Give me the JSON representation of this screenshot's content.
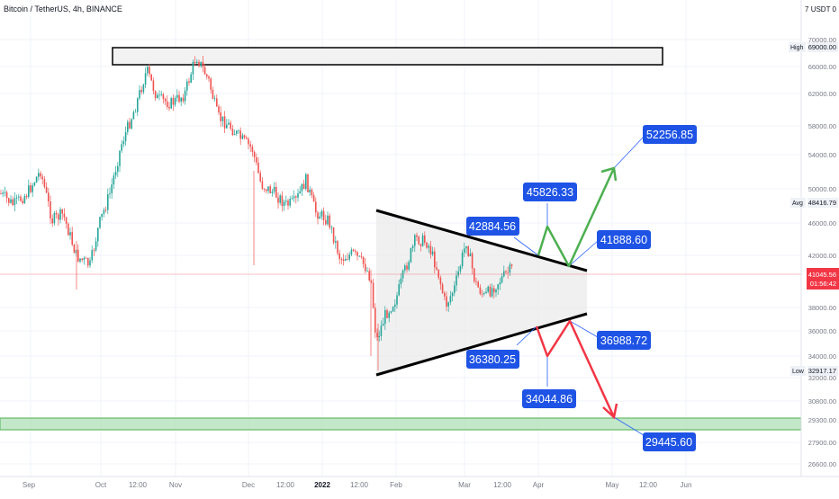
{
  "header": {
    "title": "Bitcoin / TetherUS, 4h, BINANCE",
    "top_right": "7 USDT 0"
  },
  "price_scale": {
    "ticks": [
      "70000.00",
      "66000.00",
      "62000.00",
      "58000.00",
      "54000.00",
      "50000.00",
      "46000.00",
      "42000.00",
      "38000.00",
      "36000.00",
      "34000.00",
      "32000.00",
      "30800.00",
      "29300.00",
      "27900.00",
      "26600.00"
    ],
    "high_label": "High",
    "high_value": "69000.00",
    "avg_label": "Avg",
    "avg_value": "48416.79",
    "low_label": "Low",
    "low_value": "32917.17",
    "current_price": "41045.56",
    "countdown": "01:56:42"
  },
  "time_axis": [
    "Sep",
    "Oct",
    "12:00",
    "Nov",
    "Dec",
    "12:00",
    "2022",
    "12:00",
    "Feb",
    "Mar",
    "12:00",
    "Apr",
    "May",
    "12:00",
    "Jun"
  ],
  "annotations": {
    "p1": "52256.85",
    "p2": "45826.33",
    "p3": "42884.56",
    "p4": "41888.60",
    "p5": "36988.72",
    "p6": "36380.25",
    "p7": "34044.86",
    "p8": "29445.60"
  },
  "colors": {
    "up_candle": "#26a69a",
    "down_candle": "#ef5350",
    "label_bg": "#1e53e5",
    "bull_arrow": "#4caf50",
    "bear_arrow": "#f23645",
    "support_zone": "#a5d6a7",
    "current_price_tag": "#f23645"
  },
  "chart_data": {
    "type": "candlestick",
    "title": "Bitcoin / TetherUS, 4h, BINANCE",
    "y_range": [
      26000,
      71000
    ],
    "series": [
      {
        "x": [
          "Sep",
          "Oct",
          "Nov",
          "Dec",
          "2022",
          "Feb",
          "Mar",
          "Apr",
          "May",
          "Jun"
        ],
        "values": [
          47500,
          43500,
          61000,
          57000,
          47000,
          38500,
          41000,
          41000,
          null,
          null
        ]
      }
    ],
    "annotations": [
      {
        "label": "42884.56",
        "value": 42884.56
      },
      {
        "label": "45826.33",
        "value": 45826.33
      },
      {
        "label": "41888.60",
        "value": 41888.6
      },
      {
        "label": "52256.85",
        "value": 52256.85
      },
      {
        "label": "36380.25",
        "value": 36380.25
      },
      {
        "label": "34044.86",
        "value": 34044.86
      },
      {
        "label": "36988.72",
        "value": 36988.72
      },
      {
        "label": "29445.60",
        "value": 29445.6
      }
    ],
    "zones": [
      {
        "name": "resistance",
        "low": 67000,
        "high": 69500
      },
      {
        "name": "support",
        "low": 28800,
        "high": 29900
      }
    ],
    "pattern": "symmetrical triangle",
    "grid": true
  }
}
